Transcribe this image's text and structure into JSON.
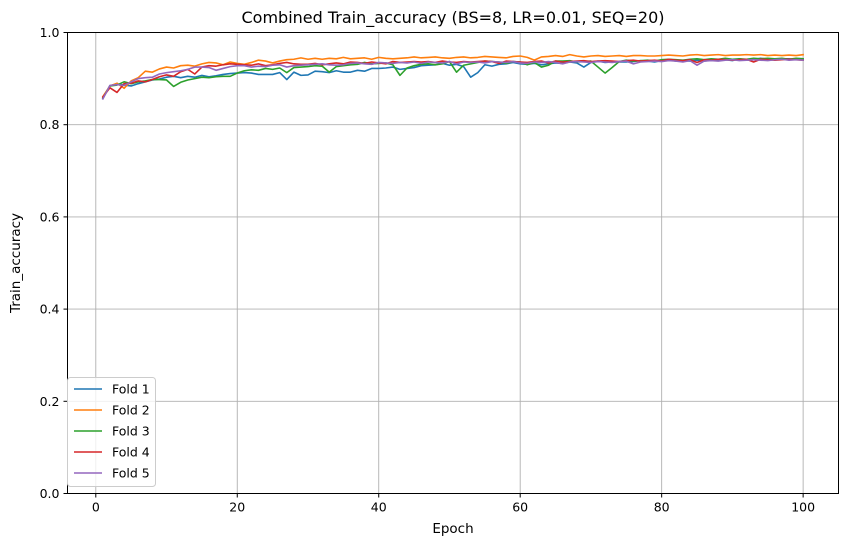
{
  "chart_data": {
    "type": "line",
    "title": "Combined Train_accuracy (BS=8, LR=0.01, SEQ=20)",
    "xlabel": "Epoch",
    "ylabel": "Train_accuracy",
    "xlim": [
      -4,
      105
    ],
    "ylim": [
      0.0,
      1.0
    ],
    "xticks": [
      0,
      20,
      40,
      60,
      80,
      100
    ],
    "xtick_labels": [
      "0",
      "20",
      "40",
      "60",
      "80",
      "100"
    ],
    "yticks": [
      0.0,
      0.2,
      0.4,
      0.6,
      0.8,
      1.0
    ],
    "ytick_labels": [
      "0.0",
      "0.2",
      "0.4",
      "0.6",
      "0.8",
      "1.0"
    ],
    "grid": true,
    "legend_position": "lower-left",
    "x": [
      1,
      2,
      3,
      4,
      5,
      6,
      7,
      8,
      9,
      10,
      11,
      12,
      13,
      14,
      15,
      16,
      17,
      18,
      19,
      20,
      21,
      22,
      23,
      24,
      25,
      26,
      27,
      28,
      29,
      30,
      31,
      32,
      33,
      34,
      35,
      36,
      37,
      38,
      39,
      40,
      41,
      42,
      43,
      44,
      45,
      46,
      47,
      48,
      49,
      50,
      51,
      52,
      53,
      54,
      55,
      56,
      57,
      58,
      59,
      60,
      61,
      62,
      63,
      64,
      65,
      66,
      67,
      68,
      69,
      70,
      71,
      72,
      73,
      74,
      75,
      76,
      77,
      78,
      79,
      80,
      81,
      82,
      83,
      84,
      85,
      86,
      87,
      88,
      89,
      90,
      91,
      92,
      93,
      94,
      95,
      96,
      97,
      98,
      99,
      100
    ],
    "series": [
      {
        "name": "Fold 1",
        "color": "#1f77b4",
        "values": [
          0.857,
          0.885,
          0.888,
          0.886,
          0.884,
          0.889,
          0.893,
          0.897,
          0.899,
          0.903,
          0.905,
          0.902,
          0.905,
          0.903,
          0.907,
          0.904,
          0.906,
          0.909,
          0.911,
          0.912,
          0.913,
          0.912,
          0.909,
          0.909,
          0.909,
          0.913,
          0.898,
          0.914,
          0.907,
          0.908,
          0.916,
          0.915,
          0.913,
          0.917,
          0.914,
          0.914,
          0.918,
          0.916,
          0.922,
          0.922,
          0.923,
          0.925,
          0.92,
          0.922,
          0.924,
          0.928,
          0.929,
          0.93,
          0.933,
          0.929,
          0.931,
          0.926,
          0.903,
          0.913,
          0.93,
          0.927,
          0.931,
          0.932,
          0.935,
          0.932,
          0.931,
          0.933,
          0.93,
          0.932,
          0.934,
          0.933,
          0.936,
          0.934,
          0.925,
          0.935,
          0.938,
          0.935,
          0.936,
          0.936,
          0.936,
          0.937,
          0.939,
          0.938,
          0.936,
          0.939,
          0.941,
          0.938,
          0.939,
          0.938,
          0.94,
          0.938,
          0.94,
          0.94,
          0.941,
          0.939,
          0.943,
          0.94,
          0.941,
          0.944,
          0.942,
          0.941,
          0.943,
          0.943,
          0.942,
          0.941
        ]
      },
      {
        "name": "Fold 2",
        "color": "#ff7f0e",
        "values": [
          0.861,
          0.884,
          0.89,
          0.879,
          0.895,
          0.902,
          0.916,
          0.914,
          0.921,
          0.925,
          0.923,
          0.928,
          0.929,
          0.927,
          0.932,
          0.935,
          0.934,
          0.93,
          0.936,
          0.933,
          0.931,
          0.935,
          0.94,
          0.938,
          0.934,
          0.938,
          0.941,
          0.942,
          0.945,
          0.942,
          0.944,
          0.942,
          0.944,
          0.943,
          0.946,
          0.943,
          0.944,
          0.945,
          0.942,
          0.946,
          0.944,
          0.943,
          0.944,
          0.945,
          0.947,
          0.945,
          0.946,
          0.947,
          0.945,
          0.944,
          0.946,
          0.947,
          0.945,
          0.946,
          0.948,
          0.947,
          0.946,
          0.945,
          0.948,
          0.949,
          0.946,
          0.94,
          0.947,
          0.948,
          0.95,
          0.948,
          0.952,
          0.949,
          0.947,
          0.949,
          0.95,
          0.948,
          0.949,
          0.95,
          0.948,
          0.95,
          0.95,
          0.949,
          0.949,
          0.95,
          0.951,
          0.95,
          0.949,
          0.951,
          0.952,
          0.95,
          0.951,
          0.952,
          0.95,
          0.951,
          0.951,
          0.952,
          0.951,
          0.952,
          0.95,
          0.951,
          0.95,
          0.951,
          0.95,
          0.952
        ]
      },
      {
        "name": "Fold 3",
        "color": "#2ca02c",
        "values": [
          0.858,
          0.884,
          0.886,
          0.893,
          0.889,
          0.893,
          0.895,
          0.898,
          0.898,
          0.897,
          0.883,
          0.892,
          0.897,
          0.9,
          0.903,
          0.902,
          0.904,
          0.905,
          0.905,
          0.912,
          0.917,
          0.919,
          0.918,
          0.922,
          0.92,
          0.923,
          0.913,
          0.924,
          0.925,
          0.926,
          0.928,
          0.927,
          0.914,
          0.926,
          0.928,
          0.93,
          0.931,
          0.935,
          0.932,
          0.933,
          0.934,
          0.93,
          0.907,
          0.923,
          0.928,
          0.931,
          0.932,
          0.93,
          0.932,
          0.937,
          0.914,
          0.929,
          0.932,
          0.935,
          0.938,
          0.937,
          0.936,
          0.933,
          0.937,
          0.936,
          0.93,
          0.935,
          0.925,
          0.929,
          0.938,
          0.938,
          0.939,
          0.936,
          0.937,
          0.938,
          0.925,
          0.912,
          0.924,
          0.937,
          0.94,
          0.938,
          0.939,
          0.94,
          0.938,
          0.941,
          0.942,
          0.941,
          0.94,
          0.942,
          0.943,
          0.941,
          0.943,
          0.942,
          0.944,
          0.942,
          0.943,
          0.942,
          0.944,
          0.943,
          0.944,
          0.943,
          0.944,
          0.942,
          0.944,
          0.943
        ]
      },
      {
        "name": "Fold 4",
        "color": "#d62728",
        "values": [
          0.86,
          0.88,
          0.87,
          0.889,
          0.89,
          0.895,
          0.893,
          0.898,
          0.904,
          0.908,
          0.905,
          0.915,
          0.92,
          0.91,
          0.925,
          0.928,
          0.927,
          0.93,
          0.932,
          0.931,
          0.93,
          0.929,
          0.932,
          0.928,
          0.93,
          0.933,
          0.935,
          0.932,
          0.931,
          0.931,
          0.933,
          0.93,
          0.932,
          0.934,
          0.932,
          0.936,
          0.935,
          0.933,
          0.936,
          0.934,
          0.932,
          0.937,
          0.935,
          0.936,
          0.937,
          0.936,
          0.937,
          0.935,
          0.938,
          0.936,
          0.935,
          0.937,
          0.936,
          0.937,
          0.938,
          0.937,
          0.933,
          0.938,
          0.937,
          0.936,
          0.935,
          0.937,
          0.938,
          0.934,
          0.938,
          0.936,
          0.937,
          0.938,
          0.939,
          0.937,
          0.938,
          0.939,
          0.938,
          0.937,
          0.939,
          0.94,
          0.938,
          0.939,
          0.94,
          0.938,
          0.942,
          0.94,
          0.939,
          0.941,
          0.935,
          0.941,
          0.94,
          0.942,
          0.941,
          0.94,
          0.941,
          0.942,
          0.936,
          0.942,
          0.941,
          0.94,
          0.941,
          0.942,
          0.941,
          0.94
        ]
      },
      {
        "name": "Fold 5",
        "color": "#9467bd",
        "values": [
          0.856,
          0.885,
          0.887,
          0.885,
          0.893,
          0.9,
          0.902,
          0.903,
          0.91,
          0.913,
          0.915,
          0.917,
          0.92,
          0.925,
          0.925,
          0.924,
          0.918,
          0.922,
          0.926,
          0.928,
          0.928,
          0.925,
          0.927,
          0.926,
          0.929,
          0.93,
          0.925,
          0.928,
          0.929,
          0.93,
          0.931,
          0.932,
          0.93,
          0.929,
          0.93,
          0.933,
          0.934,
          0.932,
          0.931,
          0.935,
          0.934,
          0.933,
          0.935,
          0.934,
          0.936,
          0.933,
          0.936,
          0.935,
          0.934,
          0.937,
          0.932,
          0.936,
          0.935,
          0.936,
          0.934,
          0.937,
          0.936,
          0.935,
          0.937,
          0.934,
          0.933,
          0.936,
          0.935,
          0.937,
          0.935,
          0.932,
          0.936,
          0.937,
          0.936,
          0.935,
          0.937,
          0.936,
          0.935,
          0.937,
          0.938,
          0.932,
          0.936,
          0.937,
          0.938,
          0.937,
          0.939,
          0.938,
          0.936,
          0.939,
          0.929,
          0.938,
          0.939,
          0.938,
          0.94,
          0.941,
          0.939,
          0.94,
          0.941,
          0.94,
          0.939,
          0.941,
          0.942,
          0.94,
          0.941,
          0.94
        ]
      }
    ]
  }
}
